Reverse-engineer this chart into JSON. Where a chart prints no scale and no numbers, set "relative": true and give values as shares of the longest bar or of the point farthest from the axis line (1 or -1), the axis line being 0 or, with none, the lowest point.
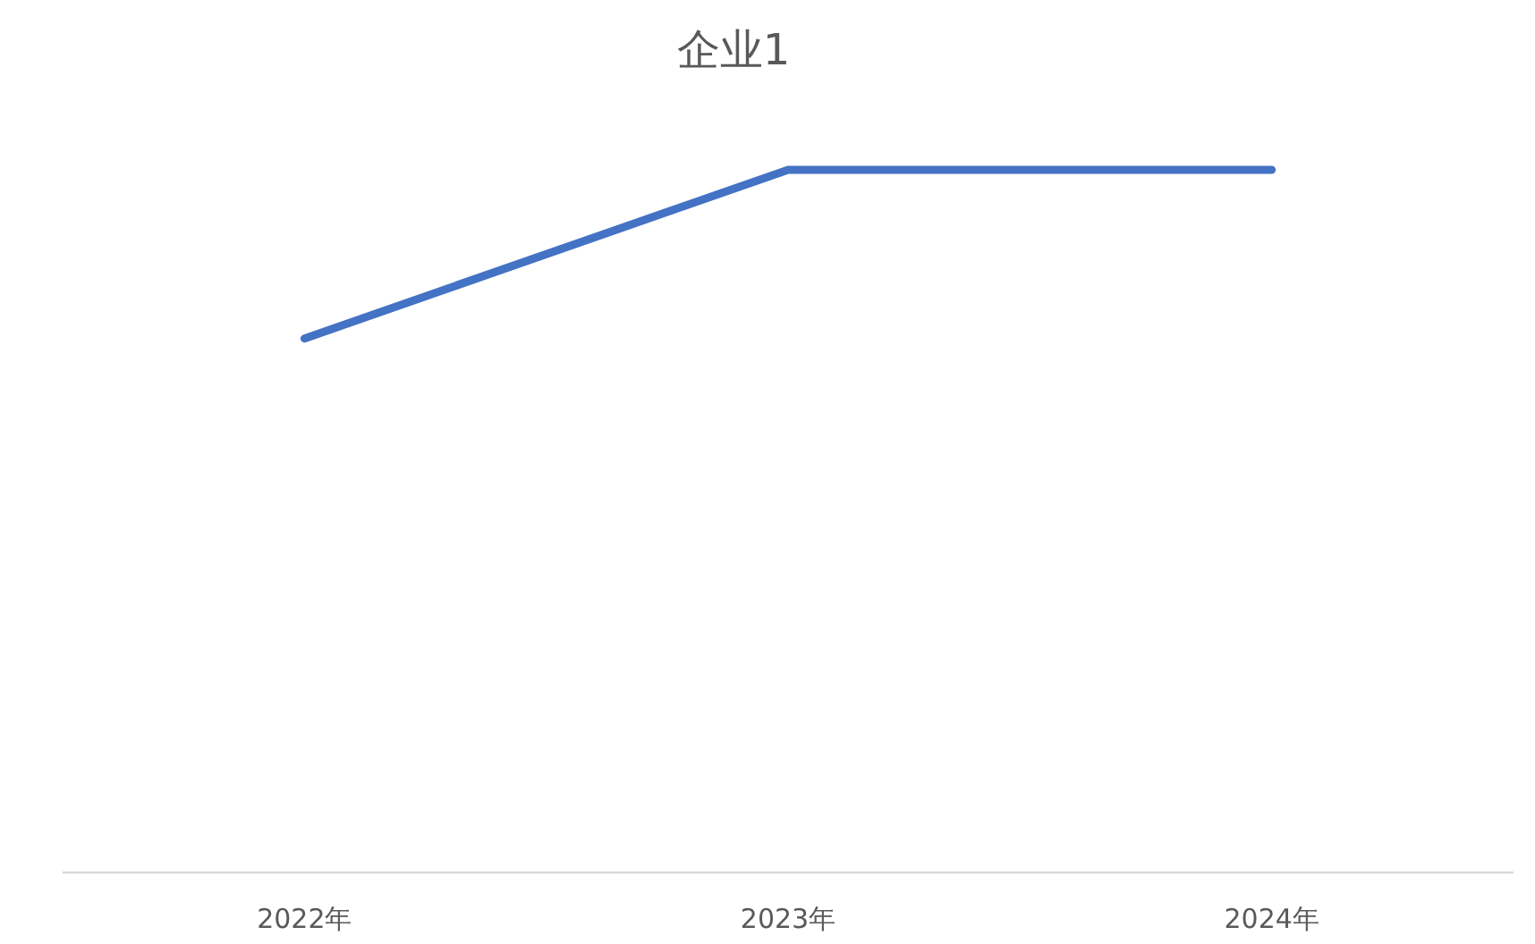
{
  "chart_data": {
    "type": "line",
    "title": "企业1",
    "categories": [
      "2022年",
      "2023年",
      "2024年"
    ],
    "relative": true,
    "series": [
      {
        "color": "#4472c4",
        "values": [
          0.76,
          1,
          1
        ]
      }
    ]
  }
}
